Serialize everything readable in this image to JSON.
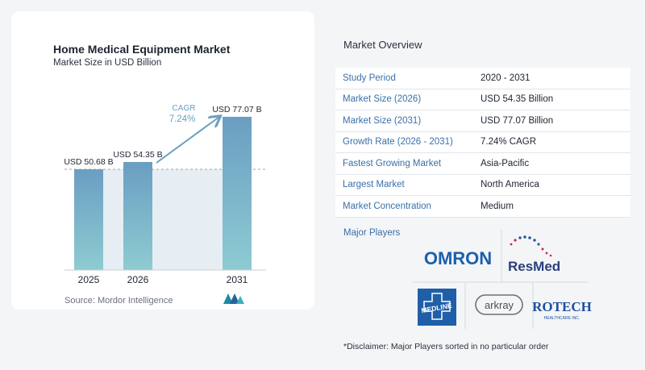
{
  "chart_data": {
    "type": "bar",
    "title": "Home Medical Equipment Market",
    "subtitle": "Market Size in USD Billion",
    "categories": [
      "2025",
      "2026",
      "2031"
    ],
    "values": [
      50.68,
      54.35,
      77.07
    ],
    "value_labels": [
      "USD 50.68 B",
      "USD 54.35 B",
      "USD 77.07 B"
    ],
    "cagr_label": "CAGR",
    "cagr_value": "7.24%",
    "colors": {
      "bar_top": "#6a9ec2",
      "bar_bottom": "#8ecbd2",
      "band": "#e6eef4",
      "arrow": "#6a9ec2"
    }
  },
  "source": "Source:  Mordor Intelligence",
  "overview": {
    "title": "Market Overview",
    "rows": [
      {
        "key": "Study Period",
        "value": "2020 - 2031"
      },
      {
        "key": "Market Size (2026)",
        "value": "USD 54.35 Billion"
      },
      {
        "key": "Market Size (2031)",
        "value": "USD 77.07 Billion"
      },
      {
        "key": "Growth Rate (2026 - 2031)",
        "value": "7.24% CAGR"
      },
      {
        "key": "Fastest Growing Market",
        "value": "Asia-Pacific"
      },
      {
        "key": "Largest Market",
        "value": "North America"
      },
      {
        "key": "Market Concentration",
        "value": "Medium"
      }
    ]
  },
  "players": {
    "title": "Major Players",
    "logos": [
      "OMRON",
      "ResMed",
      "MEDLINE",
      "arkray",
      "ROTECH",
      "HEALTHCARE INC."
    ]
  },
  "disclaimer": "*Disclaimer: Major Players sorted in no particular order"
}
